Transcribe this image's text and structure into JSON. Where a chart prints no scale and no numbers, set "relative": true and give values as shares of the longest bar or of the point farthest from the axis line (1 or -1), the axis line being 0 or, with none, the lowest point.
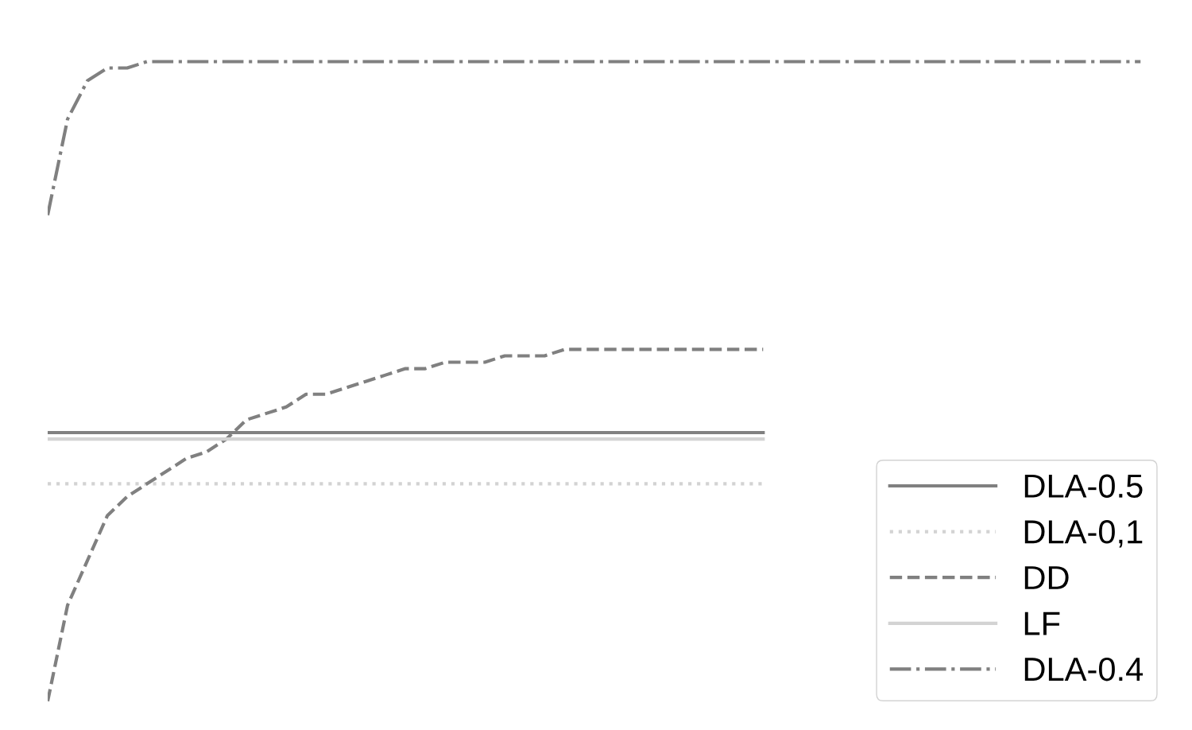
{
  "chart_data": {
    "type": "line",
    "relative": true,
    "categories": [
      null,
      null,
      null,
      null,
      null,
      null,
      null,
      null,
      null,
      null,
      null,
      null,
      null,
      null,
      null,
      null,
      null,
      null,
      null,
      null,
      null,
      null,
      null,
      null,
      null,
      null,
      null,
      null,
      null,
      null,
      null,
      null,
      null,
      null,
      null,
      null,
      null,
      null,
      null,
      null,
      null,
      null,
      null,
      null,
      null,
      null,
      null,
      null,
      null,
      null,
      null,
      null,
      null,
      null,
      null,
      null
    ],
    "legend": "bottom right",
    "marker": "none",
    "series": [
      {
        "name": "DLA-0.5",
        "color": "#808080",
        "line_style": "solid",
        "values": [
          0.42,
          0.42,
          0.42,
          0.42,
          0.42,
          0.42,
          0.42,
          0.42,
          0.42,
          0.42,
          0.42,
          0.42,
          0.42,
          0.42,
          0.42,
          0.42,
          0.42,
          0.42,
          0.42,
          0.42,
          0.42,
          0.42,
          0.42,
          0.42,
          0.42,
          0.42,
          0.42,
          0.42,
          0.42,
          0.42,
          0.42,
          0.42,
          0.42,
          0.42,
          0.42,
          0.42,
          0.42,
          null,
          null,
          null,
          null,
          null,
          null,
          null,
          null,
          null,
          null,
          null,
          null,
          null,
          null,
          null,
          null,
          null,
          null,
          null
        ]
      },
      {
        "name": "DLA-0,1",
        "color": "#d3d3d3",
        "line_style": "dotted",
        "values": [
          0.34,
          0.34,
          0.34,
          0.34,
          0.34,
          0.34,
          0.34,
          0.34,
          0.34,
          0.34,
          0.34,
          0.34,
          0.34,
          0.34,
          0.34,
          0.34,
          0.34,
          0.34,
          0.34,
          0.34,
          0.34,
          0.34,
          0.34,
          0.34,
          0.34,
          0.34,
          0.34,
          0.34,
          0.34,
          0.34,
          0.34,
          0.34,
          0.34,
          0.34,
          0.34,
          0.34,
          0.34,
          null,
          null,
          null,
          null,
          null,
          null,
          null,
          null,
          null,
          null,
          null,
          null,
          null,
          null,
          null,
          null,
          null,
          null,
          null
        ]
      },
      {
        "name": "DD",
        "color": "#808080",
        "line_style": "dashed",
        "values": [
          0,
          0.15,
          0.22,
          0.29,
          0.32,
          0.34,
          0.36,
          0.38,
          0.39,
          0.41,
          0.44,
          0.45,
          0.46,
          0.48,
          0.48,
          0.49,
          0.5,
          0.51,
          0.52,
          0.52,
          0.53,
          0.53,
          0.53,
          0.54,
          0.54,
          0.54,
          0.55,
          0.55,
          0.55,
          0.55,
          0.55,
          0.55,
          0.55,
          0.55,
          0.55,
          0.55,
          0.55,
          null,
          null,
          null,
          null,
          null,
          null,
          null,
          null,
          null,
          null,
          null,
          null,
          null,
          null,
          null,
          null,
          null,
          null,
          null
        ]
      },
      {
        "name": "LF",
        "color": "#d3d3d3",
        "line_style": "solid",
        "values": [
          0.41,
          0.41,
          0.41,
          0.41,
          0.41,
          0.41,
          0.41,
          0.41,
          0.41,
          0.41,
          0.41,
          0.41,
          0.41,
          0.41,
          0.41,
          0.41,
          0.41,
          0.41,
          0.41,
          0.41,
          0.41,
          0.41,
          0.41,
          0.41,
          0.41,
          0.41,
          0.41,
          0.41,
          0.41,
          0.41,
          0.41,
          0.41,
          0.41,
          0.41,
          0.41,
          0.41,
          0.41,
          null,
          null,
          null,
          null,
          null,
          null,
          null,
          null,
          null,
          null,
          null,
          null,
          null,
          null,
          null,
          null,
          null,
          null,
          null
        ]
      },
      {
        "name": "DLA-0.4",
        "color": "#808080",
        "line_style": "dashdot",
        "values": [
          0.76,
          0.91,
          0.97,
          0.99,
          0.99,
          1,
          1,
          1,
          1,
          1,
          1,
          1,
          1,
          1,
          1,
          1,
          1,
          1,
          1,
          1,
          1,
          1,
          1,
          1,
          1,
          1,
          1,
          1,
          1,
          1,
          1,
          1,
          1,
          1,
          1,
          1,
          1,
          1,
          1,
          1,
          1,
          1,
          1,
          1,
          1,
          1,
          1,
          1,
          1,
          1,
          1,
          1,
          1,
          1,
          1,
          1
        ]
      }
    ]
  }
}
